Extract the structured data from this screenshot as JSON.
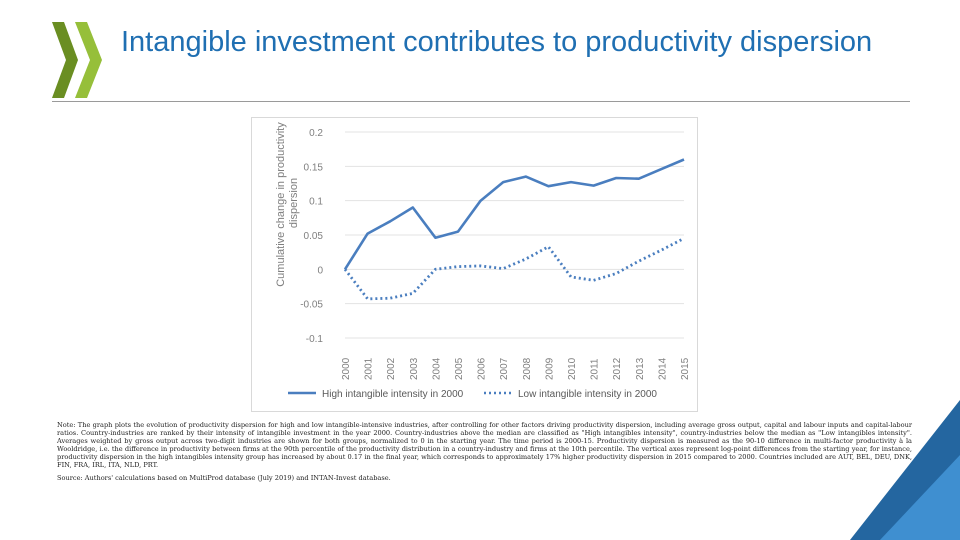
{
  "slide": {
    "title": "Intangible investment contributes to productivity dispersion",
    "note": "Note: The graph plots the evolution of productivity dispersion for high and low intangible-intensive industries, after controlling for other factors driving productivity dispersion, including average gross output, capital and labour inputs and capital-labour ratios. Country-industries are ranked by their intensity of intangible investment in the year 2000. Country-industries above the median are classified as \"High intangibles intensity\", country-industries below the median as \"Low intangibles intensity\". Averages weighted by gross output across two-digit industries are shown for both groups, normalized to 0 in the starting year. The time period is 2000-15. Productivity dispersion is measured as the 90-10 difference in multi-factor productivity à la Wooldridge, i.e. the difference in productivity between firms at the 90th percentile of the productivity distribution in a country-industry and firms at the 10th percentile. The vertical axes represent log-point differences from the starting year, for instance, productivity dispersion in the high intangibles intensity group has increased by about 0.17 in the final year, which corresponds to approximately 17% higher productivity dispersion in 2015 compared to 2000. Countries included are AUT, BEL, DEU, DNK, FIN, FRA, IRL, ITA, NLD, PRT.",
    "source": "Source: Authors' calculations based on MultiProd database (July 2019) and INTAN-Invest database."
  },
  "colors": {
    "title": "#1f6fb2",
    "series": "#4a7ebf",
    "logo_dark": "#6a8e22",
    "logo_light": "#96bf3a",
    "corner_dark": "#2466a0",
    "corner_light": "#3f8fd0"
  },
  "chart_data": {
    "type": "line",
    "x": [
      2000,
      2001,
      2002,
      2003,
      2004,
      2005,
      2006,
      2007,
      2008,
      2009,
      2010,
      2011,
      2012,
      2013,
      2014,
      2015
    ],
    "ylabel": "Cumulative change in productivity dispersion",
    "xlabel": "",
    "ylim": [
      -0.1,
      0.2
    ],
    "yticks": [
      "0.2",
      "0.15",
      "0.1",
      "0.05",
      "0",
      "-0.05",
      "-0.1"
    ],
    "grid": true,
    "legend": "bottom",
    "series": [
      {
        "name": "High intangible intensity in 2000",
        "style": "solid",
        "values": [
          0.0,
          0.052,
          0.07,
          0.09,
          0.046,
          0.055,
          0.1,
          0.127,
          0.135,
          0.121,
          0.127,
          0.122,
          0.133,
          0.132,
          0.146,
          0.16
        ]
      },
      {
        "name": "Low intangible intensity in 2000",
        "style": "dotted",
        "values": [
          0.0,
          -0.043,
          -0.042,
          -0.035,
          0.0,
          0.004,
          0.005,
          0.001,
          0.015,
          0.033,
          -0.011,
          -0.016,
          -0.006,
          0.012,
          0.028,
          0.045
        ]
      }
    ]
  }
}
